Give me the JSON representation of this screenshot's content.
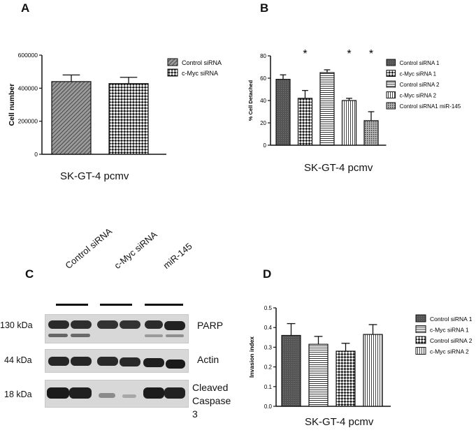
{
  "panels": {
    "a": {
      "letter": "A",
      "caption": "SK-GT-4 pcmv",
      "chart_data": {
        "type": "bar",
        "ylabel": "Cell number",
        "ylim": [
          0,
          600000
        ],
        "yticks": [
          0,
          200000,
          400000,
          600000
        ],
        "series": [
          {
            "name": "Control siRNA",
            "value": 440000,
            "error": 40000,
            "pattern": "diag"
          },
          {
            "name": "c-Myc siRNA",
            "value": 428000,
            "error": 38000,
            "pattern": "check"
          }
        ],
        "legend_position": "right"
      }
    },
    "b": {
      "letter": "B",
      "caption": "SK-GT-4 pcmv",
      "chart_data": {
        "type": "bar",
        "ylabel": "% Cell Detached",
        "ylim": [
          0,
          80
        ],
        "yticks": [
          0,
          20,
          40,
          60,
          80
        ],
        "series": [
          {
            "name": "Control siRNA 1",
            "value": 59,
            "error": 4,
            "pattern": "dark",
            "star": ""
          },
          {
            "name": "c-Myc siRNA 1",
            "value": 42,
            "error": 7,
            "pattern": "check",
            "star": "*"
          },
          {
            "name": "Control siRNA 2",
            "value": 65,
            "error": 2.5,
            "pattern": "hlines",
            "star": ""
          },
          {
            "name": "c-Myc siRNA 2",
            "value": 40,
            "error": 2,
            "pattern": "vlines",
            "star": "*"
          },
          {
            "name": "Control siRNA1 miR-145",
            "value": 22,
            "error": 8,
            "pattern": "dots",
            "star": "*"
          }
        ],
        "legend_position": "right"
      }
    },
    "c": {
      "letter": "C",
      "lanes": [
        "Control siRNA",
        "c-Myc siRNA",
        "miR-145"
      ],
      "rows": [
        {
          "kda": "130 kDa",
          "protein": "PARP"
        },
        {
          "kda": "44 kDa",
          "protein": "Actin"
        },
        {
          "kda": "18 kDa",
          "protein": "Cleaved Caspase 3"
        }
      ]
    },
    "d": {
      "letter": "D",
      "caption": "SK-GT-4 pcmv",
      "chart_data": {
        "type": "bar",
        "ylabel": "Invasion index",
        "ylim": [
          0,
          0.5
        ],
        "yticks": [
          0.0,
          0.1,
          0.2,
          0.3,
          0.4,
          0.5
        ],
        "series": [
          {
            "name": "Control siRNA 1",
            "value": 0.36,
            "error": 0.06,
            "pattern": "dark"
          },
          {
            "name": "c-Myc siRNA 1",
            "value": 0.315,
            "error": 0.04,
            "pattern": "hlines"
          },
          {
            "name": "Control siRNA 2",
            "value": 0.28,
            "error": 0.04,
            "pattern": "check"
          },
          {
            "name": "c-Myc siRNA 2",
            "value": 0.365,
            "error": 0.05,
            "pattern": "vlines"
          }
        ],
        "legend_position": "right"
      }
    }
  }
}
